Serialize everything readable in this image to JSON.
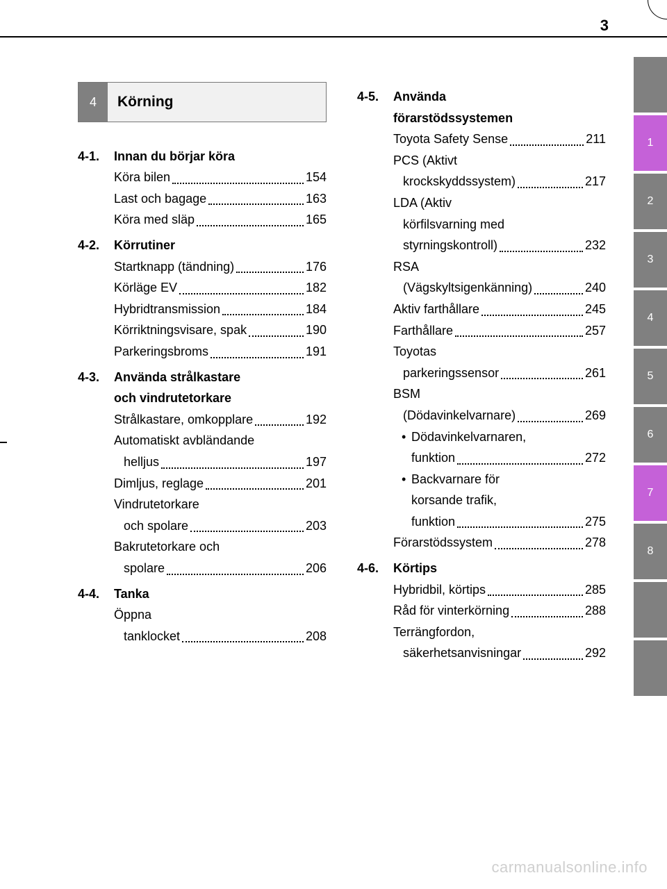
{
  "page_number": "3",
  "watermark": "carmanualsonline.info",
  "chapter": {
    "number": "4",
    "title": "Körning"
  },
  "tabs": [
    {
      "label": "",
      "style": "gray"
    },
    {
      "label": "1",
      "style": "active"
    },
    {
      "label": "2",
      "style": "gray"
    },
    {
      "label": "3",
      "style": "gray"
    },
    {
      "label": "4",
      "style": "gray"
    },
    {
      "label": "5",
      "style": "gray"
    },
    {
      "label": "6",
      "style": "gray"
    },
    {
      "label": "7",
      "style": "active"
    },
    {
      "label": "8",
      "style": "gray"
    },
    {
      "label": "",
      "style": "blank"
    },
    {
      "label": "",
      "style": "blank"
    }
  ],
  "sections_left": [
    {
      "num": "4-1.",
      "title": "Innan du börjar köra",
      "entries": [
        {
          "label": "Köra bilen",
          "page": "154"
        },
        {
          "label": "Last och bagage",
          "page": "163"
        },
        {
          "label": "Köra med släp",
          "page": "165"
        }
      ]
    },
    {
      "num": "4-2.",
      "title": "Körrutiner",
      "entries": [
        {
          "label": "Startknapp (tändning)",
          "page": "176"
        },
        {
          "label": "Körläge EV",
          "page": "182"
        },
        {
          "label": "Hybridtransmission",
          "page": "184"
        },
        {
          "label": "Körriktningsvisare, spak",
          "page": "190"
        },
        {
          "label": "Parkeringsbroms",
          "page": "191"
        }
      ]
    },
    {
      "num": "4-3.",
      "title_lines": [
        "Använda strålkastare",
        "och vindrutetorkare"
      ],
      "entries": [
        {
          "label": "Strålkastare, omkopplare",
          "page": "192"
        },
        {
          "lines": [
            "Automatiskt avbländande"
          ],
          "last": "helljus",
          "page": "197"
        },
        {
          "label": "Dimljus, reglage",
          "page": "201"
        },
        {
          "lines": [
            "Vindrutetorkare"
          ],
          "last": "och spolare",
          "page": "203"
        },
        {
          "lines": [
            "Bakrutetorkare och"
          ],
          "last": "spolare",
          "page": "206"
        }
      ]
    },
    {
      "num": "4-4.",
      "title": "Tanka",
      "entries": [
        {
          "lines": [
            "Öppna"
          ],
          "last": "tanklocket",
          "page": "208"
        }
      ]
    }
  ],
  "sections_right": [
    {
      "num": "4-5.",
      "title_lines": [
        "Använda",
        "förarstödssystemen"
      ],
      "entries": [
        {
          "label": "Toyota Safety Sense",
          "page": "211"
        },
        {
          "lines": [
            "PCS (Aktivt"
          ],
          "last": "krockskyddssystem)",
          "page": "217"
        },
        {
          "lines": [
            "LDA (Aktiv",
            "körfilsvarning med"
          ],
          "last": "styrningskontroll)",
          "page": "232"
        },
        {
          "lines": [
            "RSA"
          ],
          "last": "(Vägskyltsigenkänning)",
          "page": "240"
        },
        {
          "label": "Aktiv farthållare ",
          "page": "245"
        },
        {
          "label": "Farthållare",
          "page": "257"
        },
        {
          "lines": [
            "Toyotas"
          ],
          "last": "parkeringssensor",
          "page": "261"
        },
        {
          "lines": [
            "BSM"
          ],
          "last": "(Dödavinkelvarnare)",
          "page": "269",
          "bullets": [
            {
              "lines": [
                "Dödavinkelvarnaren,"
              ],
              "last": "funktion",
              "page": "272"
            },
            {
              "lines": [
                "Backvarnare för",
                "korsande trafik,"
              ],
              "last": "funktion",
              "page": "275"
            }
          ]
        },
        {
          "label": "Förarstödssystem",
          "page": "278"
        }
      ]
    },
    {
      "num": "4-6.",
      "title": "Körtips",
      "entries": [
        {
          "label": "Hybridbil, körtips",
          "page": "285"
        },
        {
          "label": "Råd för vinterkörning",
          "page": "288"
        },
        {
          "lines": [
            "Terrängfordon,"
          ],
          "last": "säkerhetsanvisningar",
          "page": "292"
        }
      ]
    }
  ]
}
